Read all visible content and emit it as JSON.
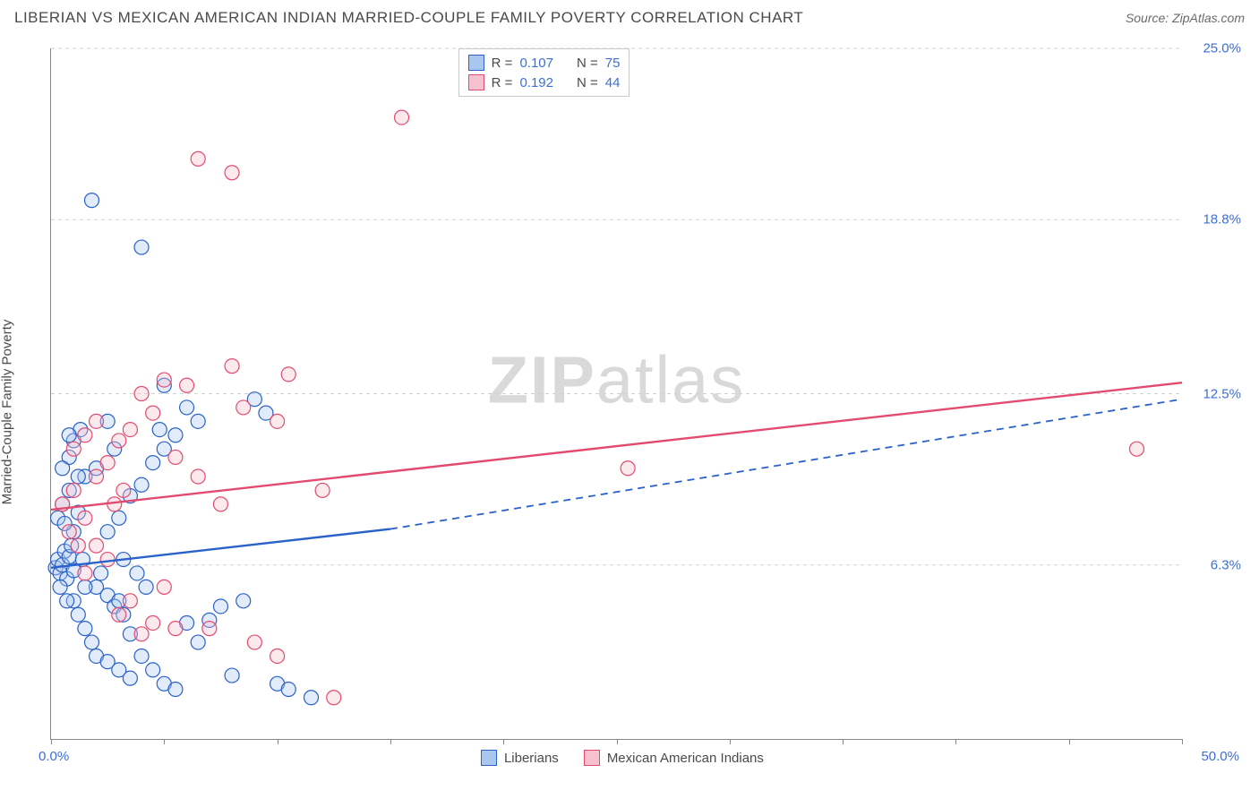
{
  "header": {
    "title": "LIBERIAN VS MEXICAN AMERICAN INDIAN MARRIED-COUPLE FAMILY POVERTY CORRELATION CHART",
    "source_prefix": "Source: ",
    "source_name": "ZipAtlas.com"
  },
  "watermark": {
    "zip": "ZIP",
    "atlas": "atlas"
  },
  "chart": {
    "type": "scatter",
    "y_axis_title": "Married-Couple Family Poverty",
    "background_color": "#ffffff",
    "grid_color": "#d0d0d0",
    "axis_color": "#888888",
    "xlim": [
      0,
      50
    ],
    "ylim": [
      0,
      25
    ],
    "xtick_positions": [
      0,
      5,
      10,
      15,
      20,
      25,
      30,
      35,
      40,
      45,
      50
    ],
    "x_labels": {
      "min": "0.0%",
      "max": "50.0%"
    },
    "y_gridlines": [
      6.3,
      12.5,
      18.8,
      25.0
    ],
    "y_labels": [
      "6.3%",
      "12.5%",
      "18.8%",
      "25.0%"
    ],
    "label_color": "#3b6fd8",
    "label_fontsize": 15,
    "marker_radius": 8,
    "marker_stroke_width": 1.2,
    "marker_fill_opacity": 0.35,
    "trend_line_width": 2.4,
    "series": [
      {
        "name": "Liberians",
        "color_stroke": "#2a62c9",
        "color_fill": "#a9c6ef",
        "r_label": "R =",
        "r_value": "0.107",
        "n_label": "N =",
        "n_value": "75",
        "trend": {
          "x0": 0,
          "y0": 6.2,
          "x1": 15,
          "y1": 7.6,
          "x2": 50,
          "y2": 12.3,
          "dash_from_x": 15
        },
        "points": [
          [
            0.2,
            6.2
          ],
          [
            0.3,
            6.5
          ],
          [
            0.4,
            6.0
          ],
          [
            0.5,
            6.3
          ],
          [
            0.6,
            6.8
          ],
          [
            0.7,
            5.8
          ],
          [
            0.8,
            6.6
          ],
          [
            0.9,
            7.0
          ],
          [
            1.0,
            6.1
          ],
          [
            0.5,
            8.5
          ],
          [
            0.8,
            9.0
          ],
          [
            1.2,
            8.2
          ],
          [
            1.5,
            9.5
          ],
          [
            0.8,
            10.2
          ],
          [
            1.0,
            10.8
          ],
          [
            1.3,
            11.2
          ],
          [
            2.0,
            5.5
          ],
          [
            2.2,
            6.0
          ],
          [
            2.5,
            5.2
          ],
          [
            2.8,
            4.8
          ],
          [
            3.0,
            5.0
          ],
          [
            3.2,
            4.5
          ],
          [
            3.5,
            3.8
          ],
          [
            1.5,
            4.0
          ],
          [
            1.8,
            3.5
          ],
          [
            2.0,
            3.0
          ],
          [
            2.5,
            2.8
          ],
          [
            3.0,
            2.5
          ],
          [
            3.5,
            2.2
          ],
          [
            4.0,
            3.0
          ],
          [
            4.5,
            2.5
          ],
          [
            5.0,
            2.0
          ],
          [
            5.5,
            1.8
          ],
          [
            6.0,
            4.2
          ],
          [
            6.5,
            3.5
          ],
          [
            2.5,
            7.5
          ],
          [
            3.0,
            8.0
          ],
          [
            3.5,
            8.8
          ],
          [
            4.0,
            9.2
          ],
          [
            4.5,
            10.0
          ],
          [
            5.0,
            10.5
          ],
          [
            5.5,
            11.0
          ],
          [
            6.0,
            12.0
          ],
          [
            6.5,
            11.5
          ],
          [
            7.0,
            4.3
          ],
          [
            7.5,
            4.8
          ],
          [
            8.0,
            2.3
          ],
          [
            8.5,
            5.0
          ],
          [
            9.0,
            12.3
          ],
          [
            9.5,
            11.8
          ],
          [
            10.0,
            2.0
          ],
          [
            10.5,
            1.8
          ],
          [
            11.5,
            1.5
          ],
          [
            4.0,
            17.8
          ],
          [
            5.0,
            12.8
          ],
          [
            1.8,
            19.5
          ],
          [
            1.0,
            5.0
          ],
          [
            1.2,
            4.5
          ],
          [
            1.5,
            5.5
          ],
          [
            1.0,
            7.5
          ],
          [
            0.5,
            9.8
          ],
          [
            0.8,
            11.0
          ],
          [
            1.2,
            9.5
          ],
          [
            0.3,
            8.0
          ],
          [
            0.6,
            7.8
          ],
          [
            2.8,
            10.5
          ],
          [
            3.2,
            6.5
          ],
          [
            3.8,
            6.0
          ],
          [
            4.2,
            5.5
          ],
          [
            4.8,
            11.2
          ],
          [
            2.0,
            9.8
          ],
          [
            2.5,
            11.5
          ],
          [
            0.4,
            5.5
          ],
          [
            0.7,
            5.0
          ],
          [
            1.4,
            6.5
          ]
        ]
      },
      {
        "name": "Mexican American Indians",
        "color_stroke": "#e24b6e",
        "color_fill": "#f6c0cf",
        "r_label": "R =",
        "r_value": "0.192",
        "n_label": "N =",
        "n_value": "44",
        "trend": {
          "x0": 0,
          "y0": 8.3,
          "x1": 50,
          "y1": 12.9,
          "dash_from_x": null
        },
        "points": [
          [
            0.5,
            8.5
          ],
          [
            1.0,
            9.0
          ],
          [
            1.5,
            8.0
          ],
          [
            2.0,
            9.5
          ],
          [
            2.5,
            10.0
          ],
          [
            3.0,
            10.8
          ],
          [
            3.5,
            11.2
          ],
          [
            4.0,
            12.5
          ],
          [
            4.5,
            11.8
          ],
          [
            5.0,
            13.0
          ],
          [
            5.5,
            10.2
          ],
          [
            6.0,
            12.8
          ],
          [
            6.5,
            9.5
          ],
          [
            7.0,
            4.0
          ],
          [
            7.5,
            8.5
          ],
          [
            8.0,
            13.5
          ],
          [
            8.5,
            12.0
          ],
          [
            9.0,
            3.5
          ],
          [
            10.0,
            11.5
          ],
          [
            10.5,
            13.2
          ],
          [
            12.0,
            9.0
          ],
          [
            12.5,
            1.5
          ],
          [
            6.5,
            21.0
          ],
          [
            8.0,
            20.5
          ],
          [
            15.5,
            22.5
          ],
          [
            25.5,
            9.8
          ],
          [
            48.0,
            10.5
          ],
          [
            1.5,
            6.0
          ],
          [
            2.0,
            7.0
          ],
          [
            2.5,
            6.5
          ],
          [
            3.0,
            4.5
          ],
          [
            3.5,
            5.0
          ],
          [
            4.0,
            3.8
          ],
          [
            4.5,
            4.2
          ],
          [
            5.0,
            5.5
          ],
          [
            1.0,
            10.5
          ],
          [
            1.5,
            11.0
          ],
          [
            2.0,
            11.5
          ],
          [
            0.8,
            7.5
          ],
          [
            1.2,
            7.0
          ],
          [
            2.8,
            8.5
          ],
          [
            3.2,
            9.0
          ],
          [
            10.0,
            3.0
          ],
          [
            5.5,
            4.0
          ]
        ]
      }
    ]
  }
}
